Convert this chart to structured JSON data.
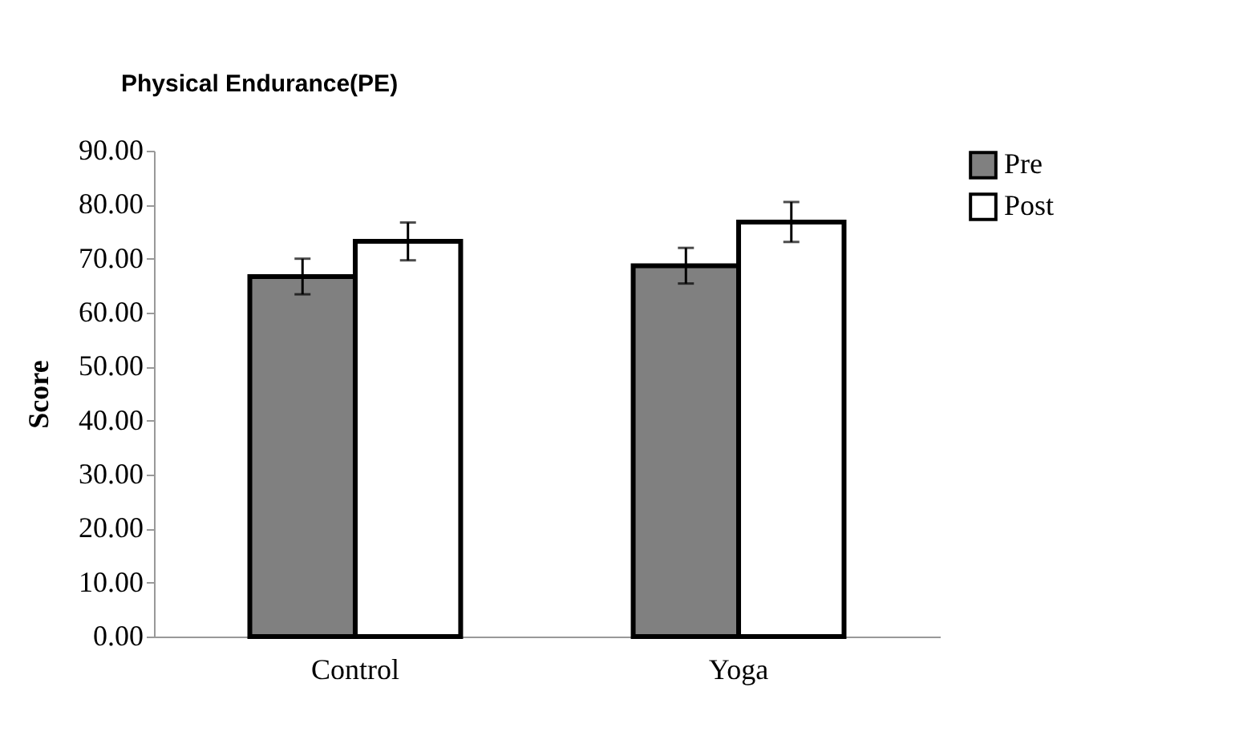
{
  "chart_data": {
    "type": "bar",
    "title": "Physical Endurance(PE)",
    "ylabel": "Score",
    "categories": [
      "Control",
      "Yoga"
    ],
    "series": [
      {
        "name": "Pre",
        "color": "#808080",
        "values": [
          66.7,
          68.7
        ],
        "errors": [
          3.3,
          3.3
        ]
      },
      {
        "name": "Post",
        "color": "#ffffff",
        "values": [
          73.2,
          76.8
        ],
        "errors": [
          3.5,
          3.7
        ]
      }
    ],
    "ylim": [
      0,
      90
    ],
    "yticks": [
      {
        "value": 0,
        "label": "0.00"
      },
      {
        "value": 10,
        "label": "10.00"
      },
      {
        "value": 20,
        "label": "20.00"
      },
      {
        "value": 30,
        "label": "30.00"
      },
      {
        "value": 40,
        "label": "40.00"
      },
      {
        "value": 50,
        "label": "50.00"
      },
      {
        "value": 60,
        "label": "60.00"
      },
      {
        "value": 70,
        "label": "70.00"
      },
      {
        "value": 80,
        "label": "80.00"
      },
      {
        "value": 90,
        "label": "90.00"
      }
    ],
    "grid": false,
    "legend": "right"
  }
}
